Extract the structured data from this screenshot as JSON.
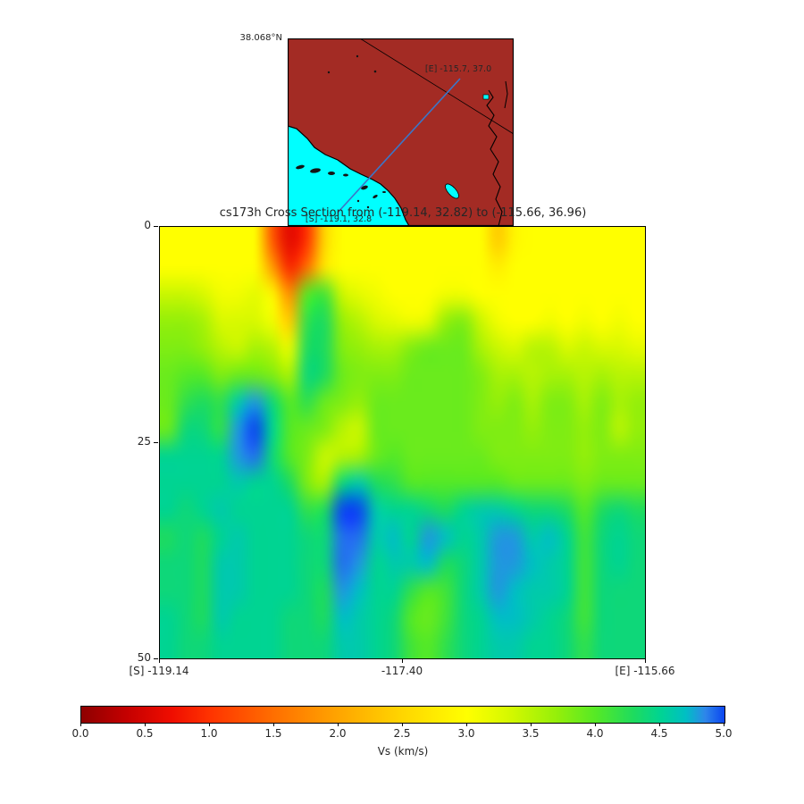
{
  "figure": {
    "title": "cs173h Cross Section from (-119.14, 32.82) to (-115.66, 36.96)"
  },
  "inset_map": {
    "north_latitude_label": "38.068°N",
    "section_start_label": "[S] -119.1, 32.8",
    "section_end_label": "[E] -115.7, 37.0",
    "land_color": "#a32b24",
    "ocean_color": "#00ffff",
    "section_line_color": "#3b76c8"
  },
  "colorbar": {
    "label": "Vs (km/s)",
    "vmin": 0.0,
    "vmax": 5.0,
    "tick_labels": [
      "0.0",
      "0.5",
      "1.0",
      "1.5",
      "2.0",
      "2.5",
      "3.0",
      "3.5",
      "4.0",
      "4.5",
      "5.0"
    ]
  },
  "chart_data": {
    "type": "heatmap",
    "title": "cs173h Cross Section from (-119.14, 32.82) to (-115.66, 36.96)",
    "xlabel": "",
    "ylabel": "",
    "x_axis": {
      "ticks": [
        {
          "label": "[S] -119.14",
          "frac": 0.0
        },
        {
          "label": "-117.40",
          "frac": 0.5
        },
        {
          "label": "[E] -115.66",
          "frac": 1.0
        }
      ],
      "lon_range": [
        -119.14,
        -115.66
      ]
    },
    "y_axis": {
      "ticks": [
        {
          "label": "0",
          "frac": 0.0
        },
        {
          "label": "25",
          "frac": 0.5
        },
        {
          "label": "50",
          "frac": 1.0
        }
      ],
      "depth_km_range": [
        0,
        50
      ]
    },
    "value_label": "Vs (km/s)",
    "value_range": [
      0.0,
      5.0
    ],
    "colormap_stops": [
      [
        0.0,
        "#8e0000"
      ],
      [
        0.07,
        "#c40000"
      ],
      [
        0.14,
        "#ef0d00"
      ],
      [
        0.2,
        "#ff3300"
      ],
      [
        0.3,
        "#ff6f00"
      ],
      [
        0.4,
        "#ffa500"
      ],
      [
        0.5,
        "#ffd600"
      ],
      [
        0.6,
        "#ffff00"
      ],
      [
        0.67,
        "#d2f800"
      ],
      [
        0.74,
        "#94ef0a"
      ],
      [
        0.8,
        "#55e926"
      ],
      [
        0.86,
        "#1ddb60"
      ],
      [
        0.9,
        "#00d492"
      ],
      [
        0.94,
        "#00bfc4"
      ],
      [
        0.97,
        "#2e86ea"
      ],
      [
        1.0,
        "#0b46f0"
      ]
    ],
    "grid_vs_km_s": {
      "cols": 28,
      "rows": 16,
      "note": "Vs values estimated from pixel colors; rows top(0 km) to bottom(50 km), cols west to east",
      "values": [
        [
          3.0,
          3.0,
          3.0,
          3.0,
          3.0,
          3.0,
          1.3,
          0.6,
          1.0,
          2.5,
          3.0,
          3.0,
          3.0,
          3.0,
          3.0,
          3.0,
          3.0,
          3.0,
          3.0,
          2.4,
          2.9,
          3.0,
          3.0,
          3.0,
          3.0,
          3.0,
          3.0,
          3.0
        ],
        [
          3.0,
          3.0,
          3.0,
          3.0,
          3.0,
          3.0,
          1.9,
          0.9,
          1.5,
          2.7,
          3.0,
          3.0,
          3.0,
          3.0,
          3.0,
          3.0,
          3.0,
          3.0,
          3.0,
          2.8,
          3.0,
          3.0,
          3.0,
          3.0,
          3.0,
          3.0,
          3.0,
          3.0
        ],
        [
          3.4,
          3.4,
          3.3,
          3.1,
          3.1,
          3.2,
          2.9,
          1.8,
          4.0,
          4.1,
          3.4,
          3.2,
          3.1,
          3.0,
          3.0,
          3.0,
          3.1,
          3.1,
          3.0,
          3.0,
          3.0,
          3.0,
          3.0,
          3.0,
          3.0,
          3.0,
          3.0,
          3.0
        ],
        [
          3.7,
          3.7,
          3.6,
          3.3,
          3.3,
          3.3,
          3.1,
          2.4,
          4.2,
          4.3,
          3.7,
          3.5,
          3.3,
          3.2,
          3.1,
          3.2,
          3.7,
          3.8,
          3.4,
          3.1,
          3.0,
          3.0,
          3.1,
          3.0,
          3.1,
          3.0,
          3.1,
          3.0
        ],
        [
          3.8,
          3.8,
          3.7,
          3.5,
          3.4,
          3.6,
          3.5,
          3.2,
          4.3,
          4.3,
          3.8,
          3.7,
          3.6,
          3.6,
          3.8,
          3.9,
          3.9,
          3.9,
          3.6,
          3.4,
          3.3,
          3.5,
          3.5,
          3.3,
          3.4,
          3.3,
          3.3,
          3.2
        ],
        [
          3.9,
          4.0,
          4.0,
          3.8,
          3.9,
          3.9,
          3.8,
          3.6,
          4.4,
          4.3,
          3.9,
          3.8,
          3.8,
          3.8,
          3.9,
          3.9,
          3.9,
          3.9,
          3.8,
          3.6,
          3.6,
          3.5,
          3.6,
          3.6,
          3.5,
          3.6,
          3.5,
          3.5
        ],
        [
          3.9,
          4.2,
          4.3,
          4.2,
          4.6,
          4.8,
          4.4,
          4.0,
          4.2,
          3.9,
          3.8,
          3.7,
          3.9,
          3.9,
          3.9,
          3.9,
          3.9,
          3.9,
          3.8,
          3.7,
          3.8,
          3.6,
          3.8,
          3.8,
          3.6,
          3.8,
          3.6,
          3.7
        ],
        [
          3.9,
          4.4,
          4.4,
          4.2,
          4.8,
          5.0,
          4.5,
          4.0,
          3.9,
          3.8,
          3.5,
          3.4,
          3.9,
          3.9,
          3.9,
          3.9,
          3.9,
          3.9,
          3.8,
          3.8,
          3.8,
          3.7,
          3.8,
          3.8,
          3.7,
          3.8,
          3.5,
          3.7
        ],
        [
          4.5,
          4.5,
          4.5,
          4.5,
          4.8,
          4.9,
          4.4,
          4.0,
          3.8,
          3.4,
          3.5,
          3.6,
          3.9,
          4.0,
          3.9,
          3.9,
          3.9,
          3.9,
          3.9,
          3.8,
          3.8,
          3.8,
          3.8,
          3.8,
          3.7,
          3.8,
          3.8,
          3.8
        ],
        [
          4.5,
          4.5,
          4.5,
          4.5,
          4.6,
          4.5,
          4.5,
          4.3,
          3.8,
          3.6,
          4.4,
          4.6,
          4.3,
          4.2,
          4.0,
          4.0,
          4.0,
          4.0,
          4.0,
          4.0,
          3.9,
          3.9,
          3.9,
          3.9,
          3.8,
          3.9,
          3.9,
          3.9
        ],
        [
          4.5,
          4.4,
          4.5,
          4.6,
          4.5,
          4.5,
          4.5,
          4.5,
          4.2,
          4.3,
          5.0,
          5.0,
          4.6,
          4.5,
          4.5,
          4.4,
          4.3,
          4.5,
          4.6,
          4.6,
          4.5,
          4.4,
          4.4,
          4.3,
          4.0,
          4.3,
          4.4,
          4.3
        ],
        [
          4.3,
          4.4,
          4.3,
          4.5,
          4.6,
          4.5,
          4.5,
          4.5,
          4.4,
          4.4,
          4.9,
          4.9,
          4.6,
          4.7,
          4.5,
          4.8,
          4.7,
          4.5,
          4.6,
          4.8,
          4.8,
          4.6,
          4.7,
          4.5,
          4.1,
          4.4,
          4.5,
          4.4
        ],
        [
          4.4,
          4.4,
          4.3,
          4.6,
          4.6,
          4.5,
          4.5,
          4.5,
          4.4,
          4.4,
          4.9,
          4.8,
          4.5,
          4.6,
          4.6,
          4.7,
          4.3,
          4.4,
          4.6,
          4.8,
          4.8,
          4.7,
          4.6,
          4.5,
          4.1,
          4.4,
          4.5,
          4.4
        ],
        [
          4.4,
          4.4,
          4.3,
          4.6,
          4.6,
          4.5,
          4.5,
          4.5,
          4.4,
          4.3,
          4.8,
          4.7,
          4.5,
          4.5,
          4.2,
          4.0,
          4.1,
          4.4,
          4.6,
          4.8,
          4.7,
          4.6,
          4.6,
          4.5,
          4.1,
          4.4,
          4.4,
          4.4
        ],
        [
          4.5,
          4.4,
          4.3,
          4.6,
          4.5,
          4.5,
          4.5,
          4.4,
          4.4,
          4.3,
          4.7,
          4.6,
          4.5,
          4.4,
          4.0,
          3.9,
          4.1,
          4.4,
          4.5,
          4.7,
          4.7,
          4.6,
          4.5,
          4.4,
          4.1,
          4.4,
          4.4,
          4.4
        ],
        [
          4.5,
          4.4,
          4.4,
          4.5,
          4.5,
          4.5,
          4.5,
          4.4,
          4.4,
          4.4,
          4.6,
          4.6,
          4.5,
          4.4,
          4.1,
          4.0,
          4.2,
          4.4,
          4.5,
          4.6,
          4.6,
          4.5,
          4.5,
          4.4,
          4.2,
          4.4,
          4.4,
          4.4
        ]
      ]
    }
  }
}
